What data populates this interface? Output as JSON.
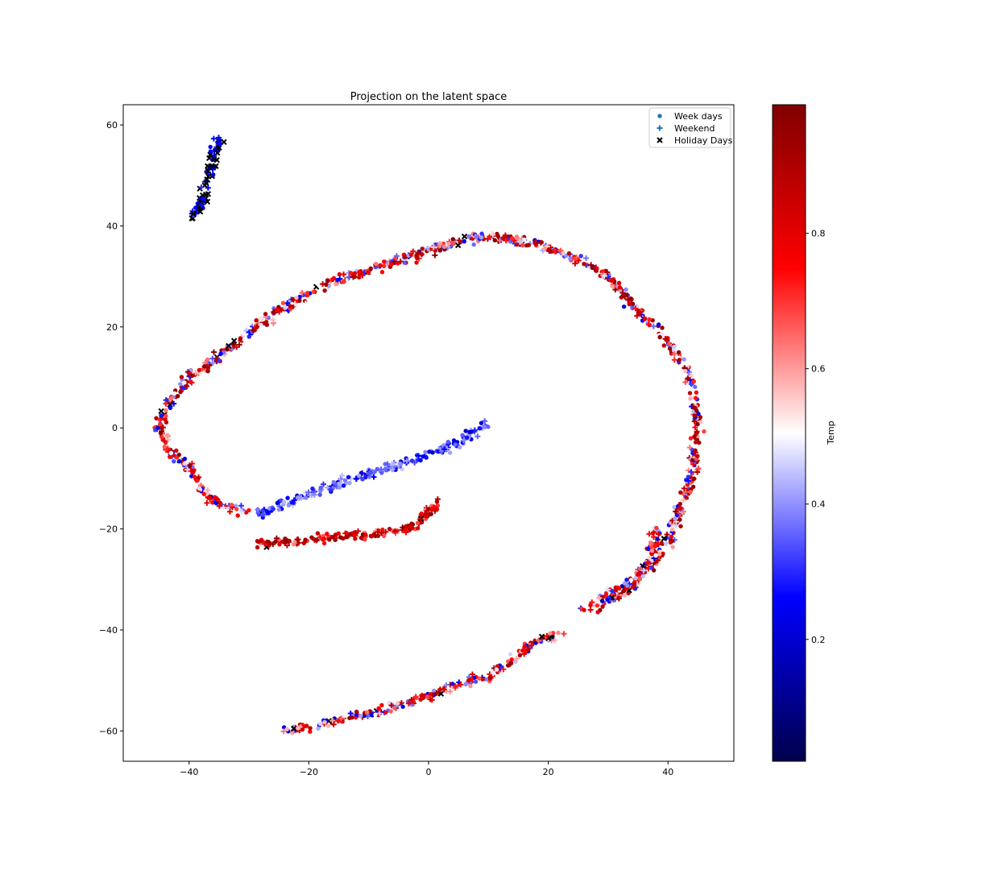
{
  "chart_data": {
    "type": "scatter",
    "title": "Projection on the latent space",
    "xlabel": "",
    "ylabel": "",
    "xlim": [
      -51,
      51
    ],
    "ylim": [
      -66,
      64
    ],
    "xticks": [
      -40,
      -20,
      0,
      20,
      40
    ],
    "yticks": [
      -60,
      -40,
      -20,
      0,
      20,
      40,
      60
    ],
    "grid": false,
    "legend": {
      "placement": "upper right",
      "entries": [
        {
          "label": "Week days",
          "marker": "circle"
        },
        {
          "label": "Weekend",
          "marker": "plus"
        },
        {
          "label": "Holiday Days",
          "marker": "x"
        }
      ]
    },
    "colorbar": {
      "label": "Temp",
      "colormap": "seismic",
      "range": [
        0.02,
        0.99
      ],
      "ticks": [
        0.2,
        0.4,
        0.6,
        0.8
      ]
    },
    "clusters": [
      {
        "name": "upper-left-streak",
        "path": [
          [
            -40,
            41
          ],
          [
            -38,
            44
          ],
          [
            -37,
            49
          ],
          [
            -36,
            53
          ],
          [
            -35,
            57
          ]
        ],
        "temp": [
          0.2,
          0.25
        ],
        "holiday_share": 0.45
      },
      {
        "name": "outer-arc",
        "path": [
          [
            -39,
            -9
          ],
          [
            -43,
            -5
          ],
          [
            -45,
            0
          ],
          [
            -44,
            4
          ],
          [
            -40,
            10
          ],
          [
            -35,
            14
          ],
          [
            -30,
            19
          ],
          [
            -24,
            24
          ],
          [
            -16,
            29
          ],
          [
            -8,
            32
          ],
          [
            0,
            35
          ],
          [
            8,
            38
          ],
          [
            16,
            37
          ],
          [
            24,
            34
          ],
          [
            30,
            30
          ],
          [
            35,
            23
          ],
          [
            40,
            17
          ],
          [
            44,
            10
          ],
          [
            45,
            0
          ],
          [
            44,
            -10
          ],
          [
            41,
            -20
          ],
          [
            37,
            -28
          ],
          [
            32,
            -33
          ],
          [
            28,
            -36
          ]
        ],
        "temp": [
          0.25,
          0.95
        ],
        "holiday_share": 0.01
      },
      {
        "name": "inner-spur-blue",
        "path": [
          [
            -28,
            -17
          ],
          [
            -20,
            -13
          ],
          [
            -12,
            -10
          ],
          [
            -4,
            -7
          ],
          [
            3,
            -4
          ],
          [
            10,
            1
          ]
        ],
        "temp": [
          0.2,
          0.4
        ],
        "holiday_share": 0.01
      },
      {
        "name": "inner-spur-red",
        "path": [
          [
            -29,
            -23
          ],
          [
            -20,
            -22
          ],
          [
            -10,
            -21
          ],
          [
            -3,
            -20
          ],
          [
            2,
            -14
          ]
        ],
        "temp": [
          0.65,
          0.95
        ],
        "holiday_share": 0.01
      },
      {
        "name": "lower-left-hook",
        "path": [
          [
            -39,
            -9
          ],
          [
            -38,
            -12
          ],
          [
            -35,
            -15
          ],
          [
            -30,
            -17
          ]
        ],
        "temp": [
          0.25,
          0.85
        ],
        "holiday_share": 0.02
      },
      {
        "name": "bottom-arc",
        "path": [
          [
            -24,
            -60
          ],
          [
            -15,
            -58
          ],
          [
            -5,
            -55
          ],
          [
            5,
            -51
          ],
          [
            12,
            -48
          ],
          [
            18,
            -42
          ],
          [
            22,
            -41
          ]
        ],
        "temp": [
          0.2,
          0.9
        ],
        "holiday_share": 0.02
      },
      {
        "name": "right-lower-tail",
        "path": [
          [
            26,
            -36
          ],
          [
            30,
            -33
          ],
          [
            34,
            -30
          ],
          [
            37,
            -26
          ],
          [
            38,
            -20
          ]
        ],
        "temp": [
          0.2,
          0.85
        ],
        "holiday_share": 0.01
      }
    ]
  }
}
